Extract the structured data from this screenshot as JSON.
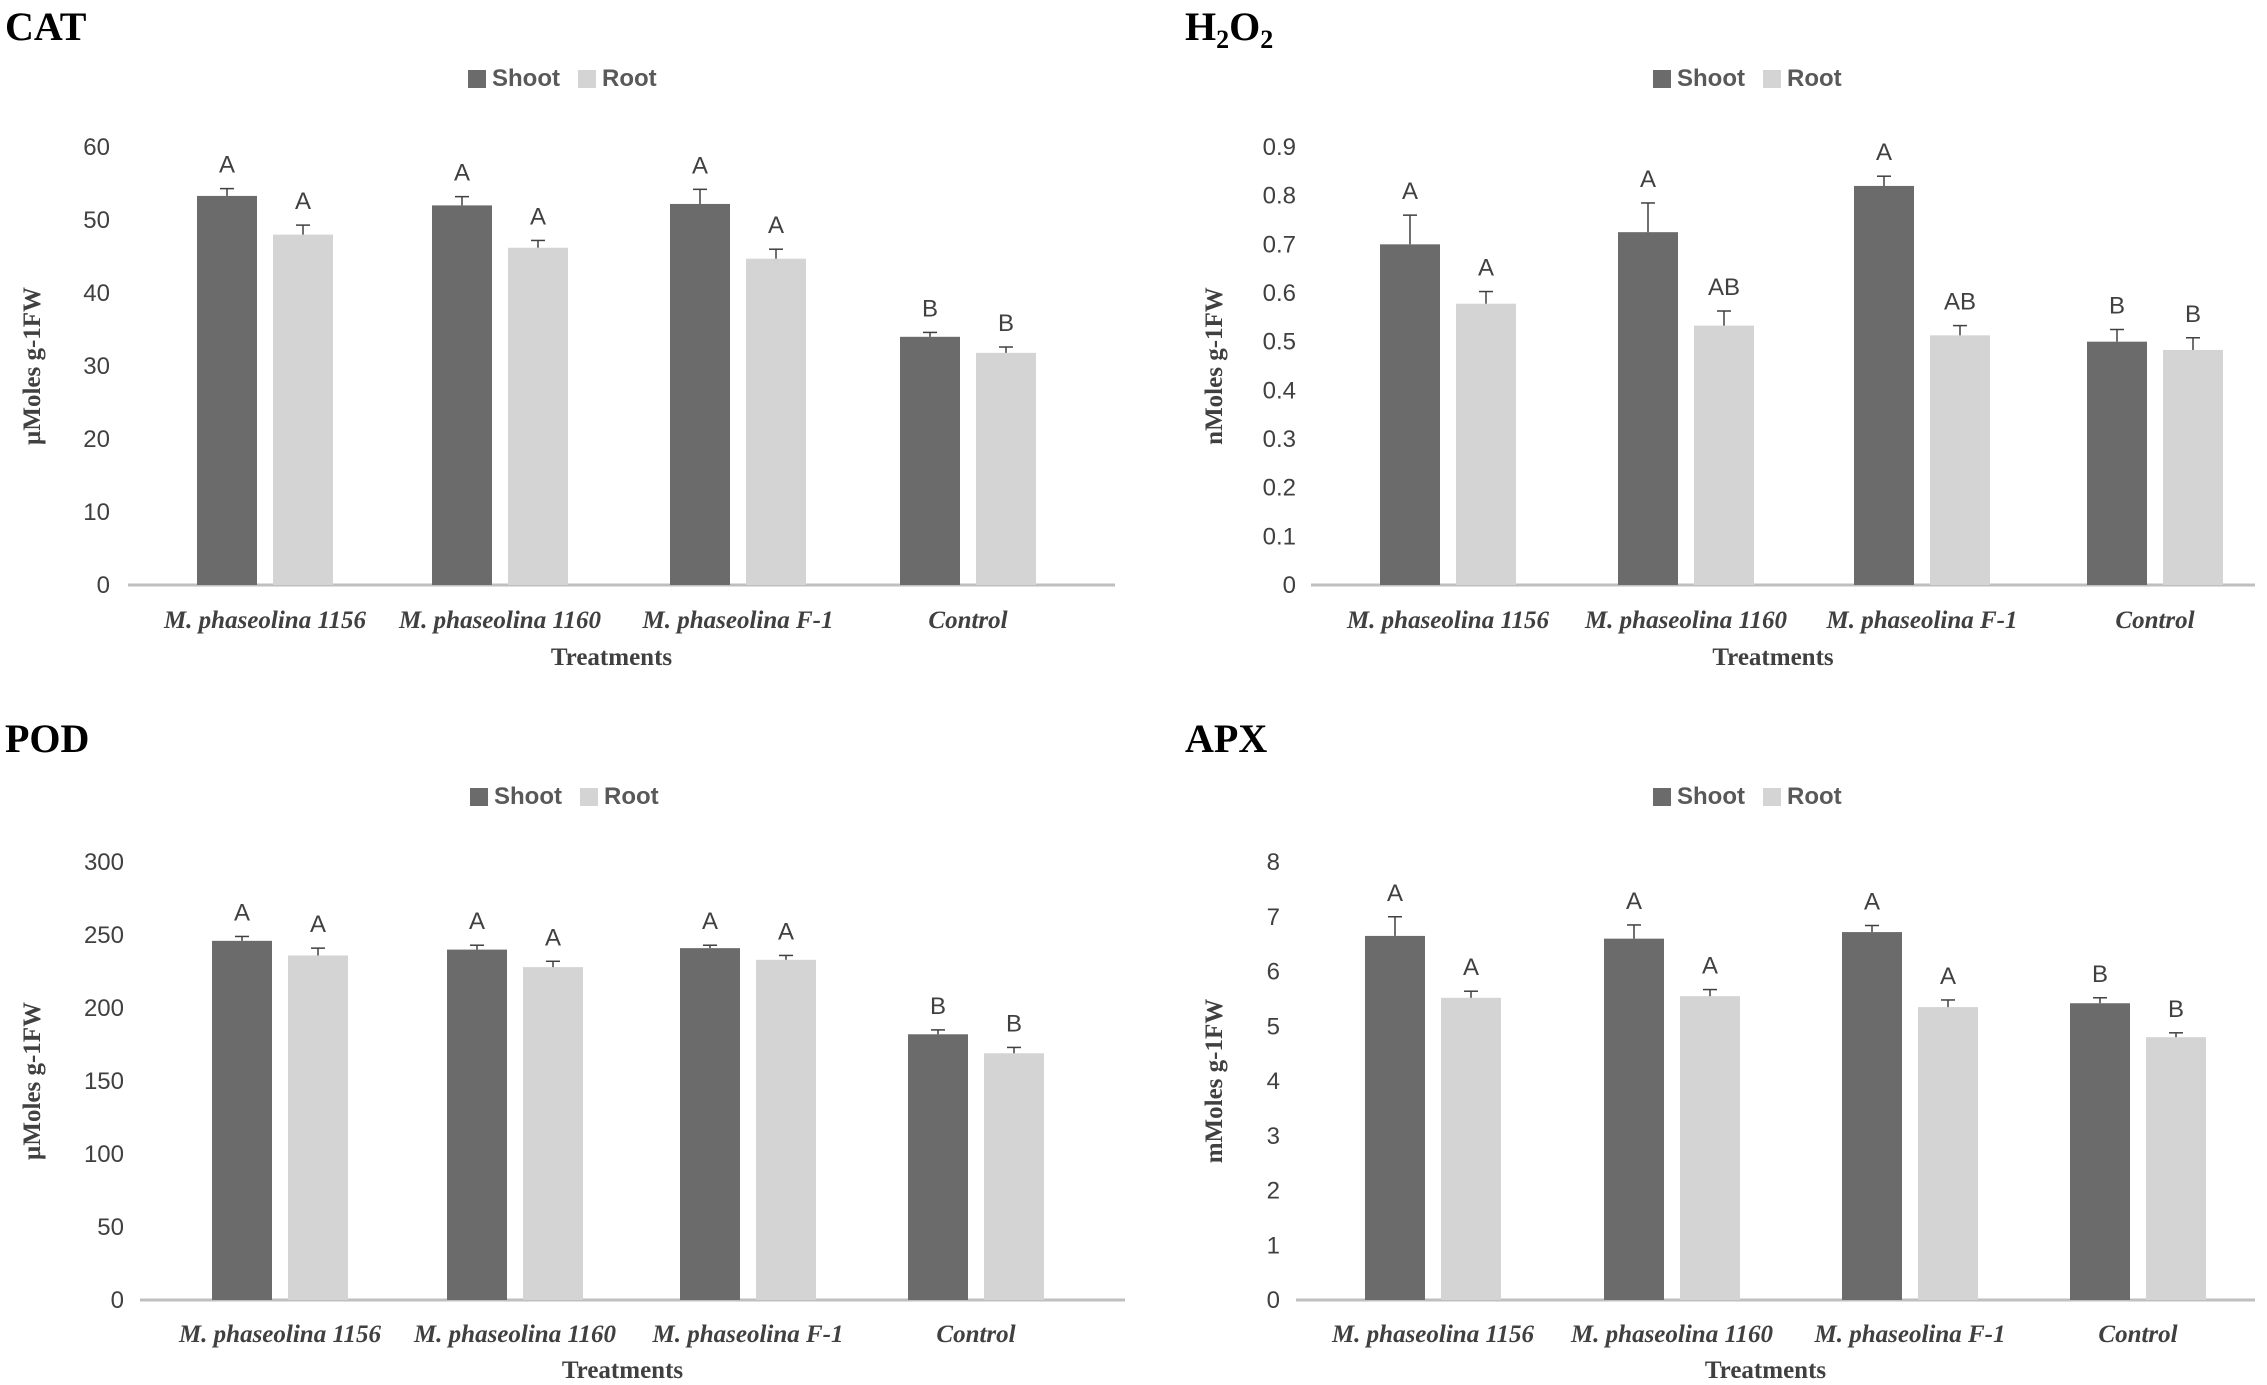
{
  "colors": {
    "shoot": "#6b6b6b",
    "root": "#d4d4d4",
    "axis": "#bfbfbf",
    "error": "#404040"
  },
  "chart_data": [
    {
      "type": "bar",
      "title": "CAT",
      "legend": [
        "Shoot",
        "Root"
      ],
      "categories": [
        "M. phaseolina 1156",
        "M. phaseolina 1160",
        "M. phaseolina F-1",
        "Control"
      ],
      "xlabel": "Treatments",
      "ylabel": "µMoles g-1FW",
      "ylim": [
        0,
        60
      ],
      "yticks": [
        "0",
        "10",
        "20",
        "30",
        "40",
        "50",
        "60"
      ],
      "series": [
        {
          "name": "Shoot",
          "values": [
            53.3,
            52.0,
            52.2,
            34.0
          ],
          "errors": [
            1.0,
            1.2,
            2.0,
            0.6
          ],
          "letters": [
            "A",
            "A",
            "A",
            "B"
          ]
        },
        {
          "name": "Root",
          "values": [
            48.0,
            46.2,
            44.7,
            31.8
          ],
          "errors": [
            1.3,
            1.0,
            1.3,
            0.8
          ],
          "letters": [
            "A",
            "A",
            "A",
            "B"
          ]
        }
      ]
    },
    {
      "type": "bar",
      "title": "H2O2",
      "title_main": "H",
      "title_sub1": "2",
      "title_mid": "O",
      "title_sub2": "2",
      "legend": [
        "Shoot",
        "Root"
      ],
      "categories": [
        "M. phaseolina 1156",
        "M. phaseolina 1160",
        "M. phaseolina F-1",
        "Control"
      ],
      "xlabel": "Treatments",
      "ylabel": "nMoles g-1FW",
      "ylim": [
        0,
        0.9
      ],
      "yticks": [
        "0",
        "0.1",
        "0.2",
        "0.3",
        "0.4",
        "0.5",
        "0.6",
        "0.7",
        "0.8",
        "0.9"
      ],
      "series": [
        {
          "name": "Shoot",
          "values": [
            0.7,
            0.725,
            0.82,
            0.5
          ],
          "errors": [
            0.06,
            0.06,
            0.02,
            0.025
          ],
          "letters": [
            "A",
            "A",
            "A",
            "B"
          ]
        },
        {
          "name": "Root",
          "values": [
            0.578,
            0.533,
            0.513,
            0.483
          ],
          "errors": [
            0.025,
            0.03,
            0.02,
            0.025
          ],
          "letters": [
            "A",
            "AB",
            "AB",
            "B"
          ]
        }
      ]
    },
    {
      "type": "bar",
      "title": "POD",
      "legend": [
        "Shoot",
        "Root"
      ],
      "categories": [
        "M. phaseolina 1156",
        "M. phaseolina 1160",
        "M. phaseolina F-1",
        "Control"
      ],
      "xlabel": "Treatments",
      "ylabel": "µMoles g-1FW",
      "ylim": [
        0,
        300
      ],
      "yticks": [
        "0",
        "50",
        "100",
        "150",
        "200",
        "250",
        "300"
      ],
      "series": [
        {
          "name": "Shoot",
          "values": [
            246,
            240,
            241,
            182
          ],
          "errors": [
            3,
            3,
            2,
            3
          ],
          "letters": [
            "A",
            "A",
            "A",
            "B"
          ]
        },
        {
          "name": "Root",
          "values": [
            236,
            228,
            233,
            169
          ],
          "errors": [
            5,
            4,
            3,
            4
          ],
          "letters": [
            "A",
            "A",
            "A",
            "B"
          ]
        }
      ]
    },
    {
      "type": "bar",
      "title": "APX",
      "legend": [
        "Shoot",
        "Root"
      ],
      "categories": [
        "M. phaseolina 1156",
        "M. phaseolina 1160",
        "M. phaseolina F-1",
        "Control"
      ],
      "xlabel": "Treatments",
      "ylabel": "mMoles g-1FW",
      "ylim": [
        0,
        8
      ],
      "yticks": [
        "0",
        "1",
        "2",
        "3",
        "4",
        "5",
        "6",
        "7",
        "8"
      ],
      "series": [
        {
          "name": "Shoot",
          "values": [
            6.65,
            6.6,
            6.72,
            5.42
          ],
          "errors": [
            0.35,
            0.25,
            0.12,
            0.1
          ],
          "letters": [
            "A",
            "A",
            "A",
            "B"
          ]
        },
        {
          "name": "Root",
          "values": [
            5.52,
            5.55,
            5.35,
            4.8
          ],
          "errors": [
            0.12,
            0.12,
            0.13,
            0.08
          ],
          "letters": [
            "A",
            "A",
            "A",
            "B"
          ]
        }
      ]
    }
  ]
}
